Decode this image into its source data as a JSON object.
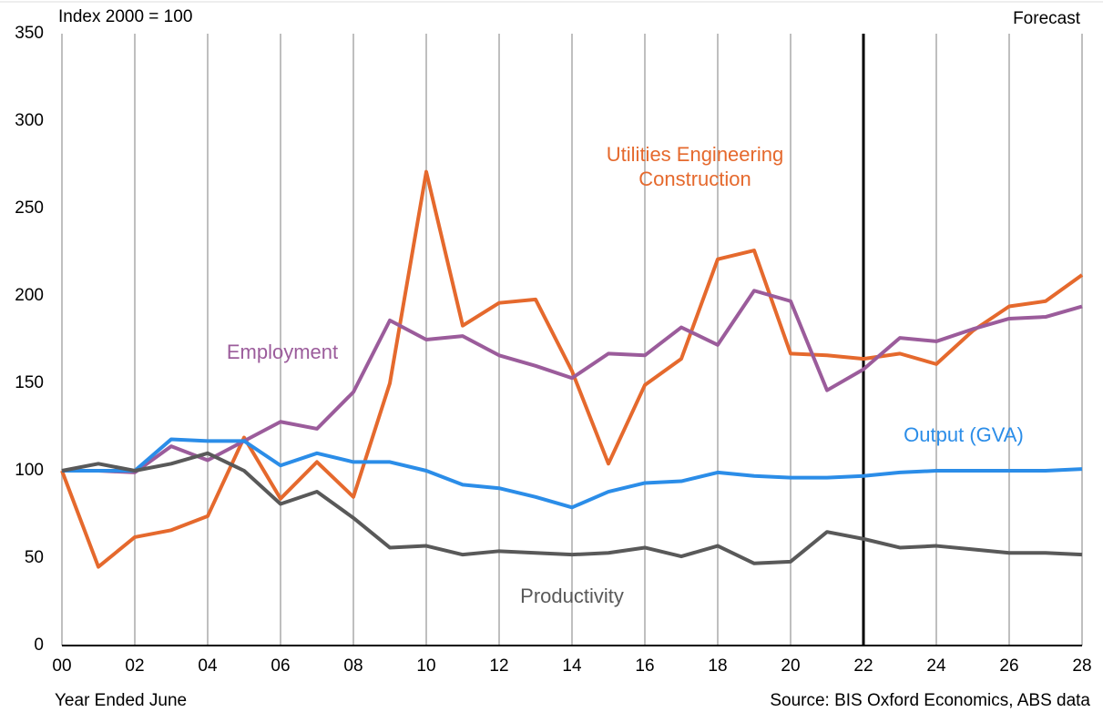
{
  "chart_data": {
    "type": "line",
    "title": "Index 2000 = 100",
    "x_label": "Year Ended June",
    "source": "Source: BIS Oxford Economics, ABS data",
    "forecast_label": "Forecast",
    "forecast_x": 22,
    "x": [
      0,
      1,
      2,
      3,
      4,
      5,
      6,
      7,
      8,
      9,
      10,
      11,
      12,
      13,
      14,
      15,
      16,
      17,
      18,
      19,
      20,
      21,
      22,
      23,
      24,
      25,
      26,
      27,
      28
    ],
    "xlim": [
      0,
      28
    ],
    "xticks": [
      {
        "value": 0,
        "label": "00"
      },
      {
        "value": 2,
        "label": "02"
      },
      {
        "value": 4,
        "label": "04"
      },
      {
        "value": 6,
        "label": "06"
      },
      {
        "value": 8,
        "label": "08"
      },
      10,
      12,
      14,
      16,
      18,
      20,
      22,
      24,
      26,
      28
    ],
    "ylim": [
      0,
      350
    ],
    "yticks": [
      0,
      50,
      100,
      150,
      200,
      250,
      300,
      350
    ],
    "grid": "x",
    "series": [
      {
        "name": "Utilities Engineering Construction",
        "color": "#e5692d",
        "values": [
          100,
          45,
          62,
          66,
          74,
          119,
          84,
          105,
          85,
          150,
          271,
          183,
          196,
          198,
          157,
          104,
          149,
          164,
          221,
          226,
          167,
          166,
          164,
          167,
          161,
          180,
          194,
          197,
          212
        ]
      },
      {
        "name": "Employment",
        "color": "#9b5c9b",
        "values": [
          100,
          100,
          99,
          114,
          106,
          117,
          128,
          124,
          145,
          186,
          175,
          177,
          166,
          160,
          153,
          167,
          166,
          182,
          172,
          203,
          197,
          146,
          158,
          176,
          174,
          181,
          187,
          188,
          194
        ]
      },
      {
        "name": "Output (GVA)",
        "color": "#2b8de8",
        "values": [
          100,
          100,
          100,
          118,
          117,
          117,
          103,
          110,
          105,
          105,
          100,
          92,
          90,
          85,
          79,
          88,
          93,
          94,
          99,
          97,
          96,
          96,
          97,
          99,
          100,
          100,
          100,
          100,
          101
        ]
      },
      {
        "name": "Productivity",
        "color": "#595959",
        "values": [
          100,
          104,
          100,
          104,
          110,
          100,
          81,
          88,
          73,
          56,
          57,
          52,
          54,
          53,
          52,
          53,
          56,
          51,
          57,
          47,
          48,
          65,
          61,
          56,
          57,
          55,
          53,
          53,
          52
        ]
      }
    ]
  }
}
